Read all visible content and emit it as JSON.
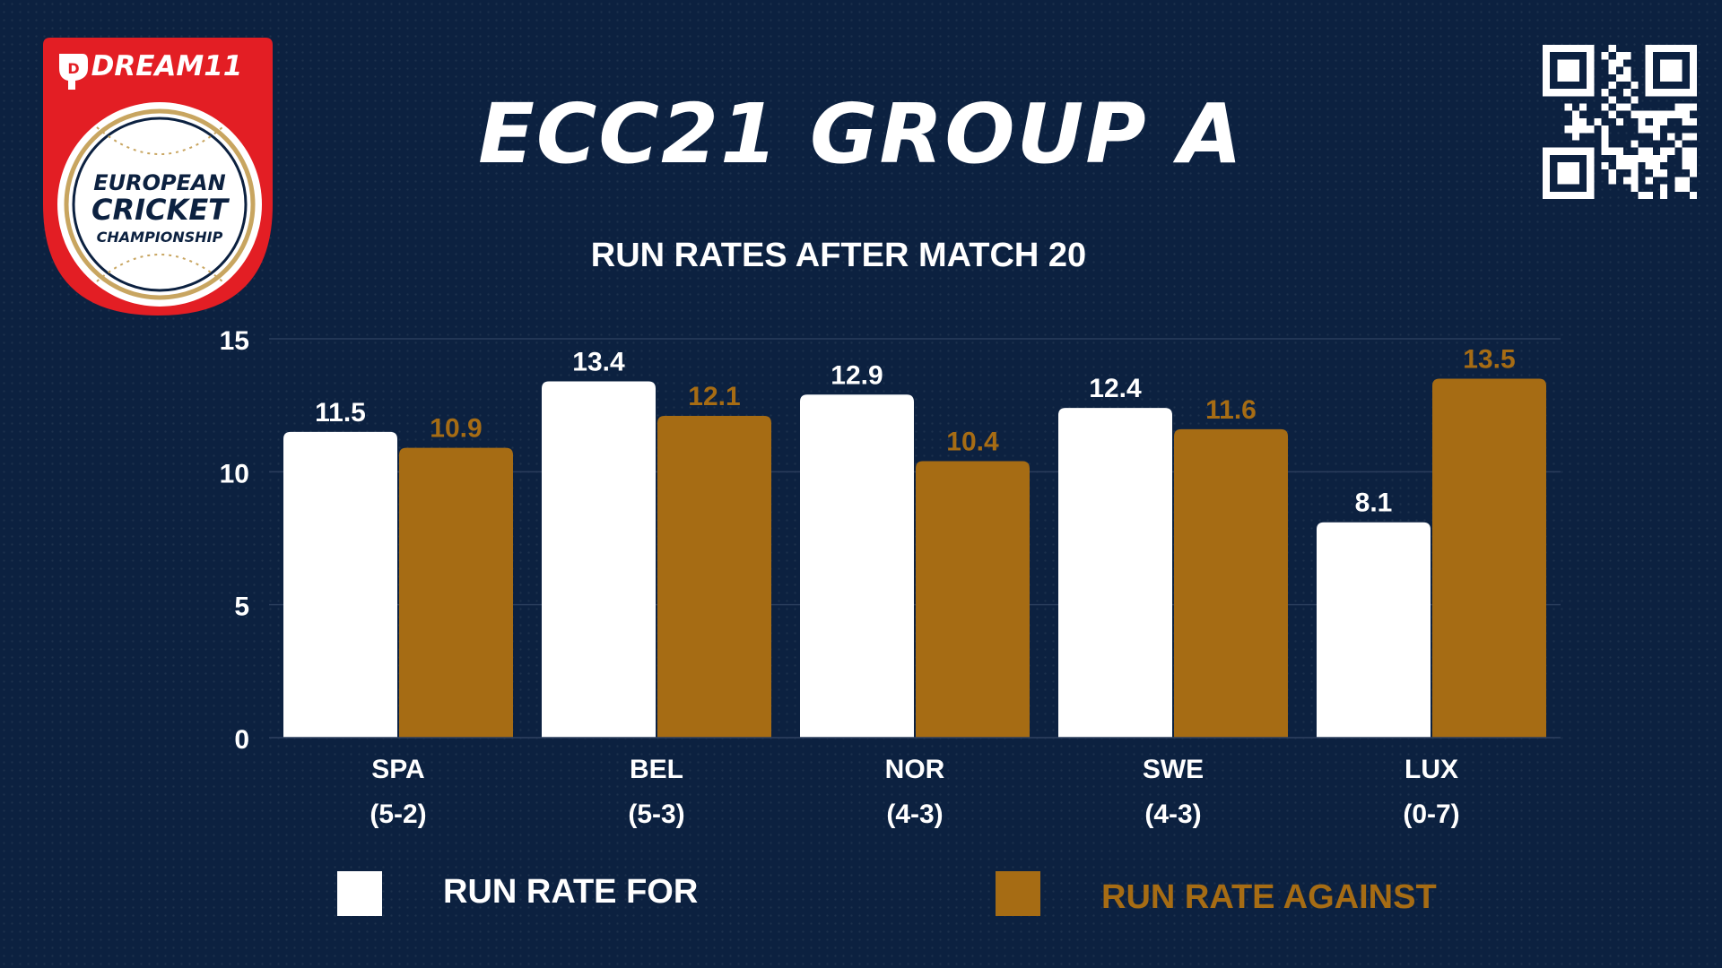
{
  "brand": {
    "logo_sponsor": "DREAM11",
    "logo_lines": [
      "EUROPEAN",
      "CRICKET",
      "CHAMPIONSHIP"
    ],
    "logo_red": "#e31e24",
    "logo_gold": "#c8a560",
    "qr_icon": "qr-code-icon"
  },
  "colors": {
    "background": "#0c2140",
    "for": "#ffffff",
    "against": "#a66c14",
    "grid": "#2a3d5c",
    "text": "#ffffff"
  },
  "title": "ECC21 GROUP A",
  "subtitle": "RUN RATES AFTER MATCH 20",
  "legend": {
    "for_label": "RUN RATE FOR",
    "against_label": "RUN RATE AGAINST"
  },
  "chart_data": {
    "type": "bar",
    "title": "RUN RATES AFTER MATCH 20",
    "categories": [
      "SPA",
      "BEL",
      "NOR",
      "SWE",
      "LUX"
    ],
    "category_records": [
      "(5-2)",
      "(5-3)",
      "(4-3)",
      "(4-3)",
      "(0-7)"
    ],
    "series": [
      {
        "name": "RUN RATE FOR",
        "values": [
          11.5,
          13.4,
          12.9,
          12.4,
          8.1
        ]
      },
      {
        "name": "RUN RATE AGAINST",
        "values": [
          10.9,
          12.1,
          10.4,
          11.6,
          13.5
        ]
      }
    ],
    "y_ticks": [
      0,
      5,
      10,
      15
    ],
    "ylim": [
      0,
      15
    ],
    "grid": true,
    "legend_position": "bottom",
    "data_labels": true
  }
}
